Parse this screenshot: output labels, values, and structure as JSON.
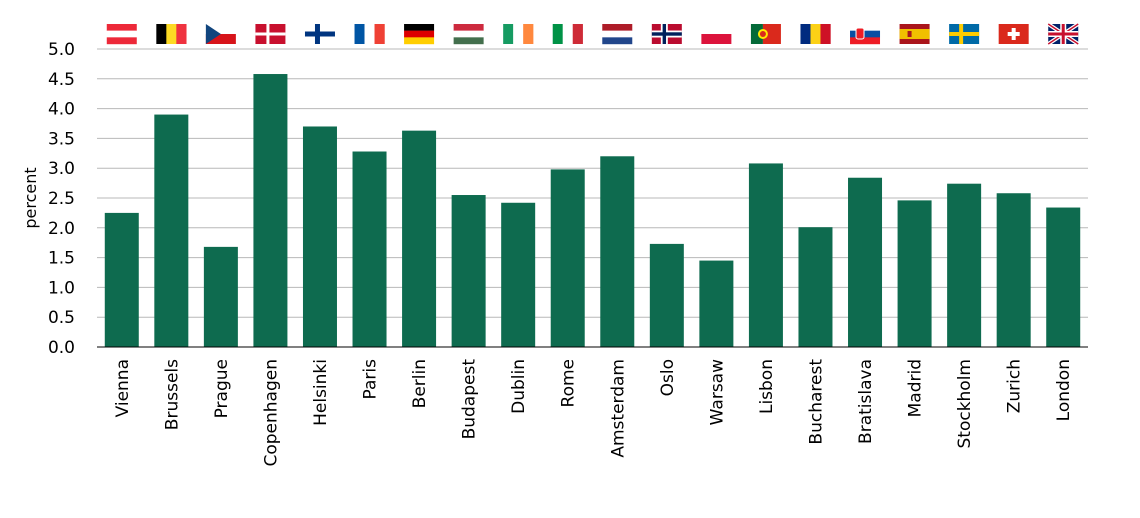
{
  "chart_data": {
    "type": "bar",
    "ylabel": "percent",
    "xlabel": "",
    "ylim": [
      0,
      5
    ],
    "yticks": [
      "0.0",
      "0.5",
      "1.0",
      "1.5",
      "2.0",
      "2.5",
      "3.0",
      "3.5",
      "4.0",
      "4.5",
      "5.0"
    ],
    "grid": true,
    "bar_color": "#0e6b4f",
    "categories": [
      "Vienna",
      "Brussels",
      "Prague",
      "Copenhagen",
      "Helsinki",
      "Paris",
      "Berlin",
      "Budapest",
      "Dublin",
      "Rome",
      "Amsterdam",
      "Oslo",
      "Warsaw",
      "Lisbon",
      "Bucharest",
      "Bratislava",
      "Madrid",
      "Stockholm",
      "Zurich",
      "London"
    ],
    "values": [
      2.25,
      3.9,
      1.68,
      4.58,
      3.7,
      3.28,
      3.63,
      2.55,
      2.42,
      2.98,
      3.2,
      1.73,
      1.45,
      3.08,
      2.01,
      2.84,
      2.46,
      2.74,
      2.58,
      2.34
    ],
    "flags": [
      "austria-flag-icon",
      "belgium-flag-icon",
      "czechia-flag-icon",
      "denmark-flag-icon",
      "finland-flag-icon",
      "france-flag-icon",
      "germany-flag-icon",
      "hungary-flag-icon",
      "ireland-flag-icon",
      "italy-flag-icon",
      "netherlands-flag-icon",
      "norway-flag-icon",
      "poland-flag-icon",
      "portugal-flag-icon",
      "romania-flag-icon",
      "slovakia-flag-icon",
      "spain-flag-icon",
      "sweden-flag-icon",
      "switzerland-flag-icon",
      "united-kingdom-flag-icon"
    ]
  }
}
